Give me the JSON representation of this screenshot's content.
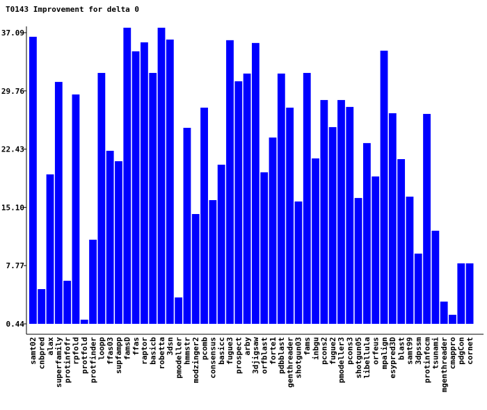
{
  "chart_data": {
    "type": "bar",
    "title": "T0143 Improvement for delta 0",
    "categories": [
      "samt02",
      "cnbpred",
      "alax",
      "superfamily",
      "protinfofr",
      "rpfold",
      "protfold",
      "protfinder",
      "loopp",
      "ffas03",
      "supfampp",
      "famsD",
      "ffas",
      "raptor",
      "basicb",
      "robetta",
      "3dsn",
      "pmodeller",
      "hmmstr",
      "modzinger2",
      "pcomb",
      "consensus",
      "basicc",
      "fugue3",
      "prospect",
      "arby",
      "3djigsaw",
      "orfblast",
      "forte1",
      "pdbblast",
      "genthreader",
      "shotgun03",
      "fams",
      "inbgu",
      "pcons2",
      "fugue2",
      "pmodeller3",
      "pcons3",
      "shotgun05",
      "libellula",
      "orfeus",
      "mpalign",
      "esypred3D",
      "blast",
      "samt99",
      "3dpssm",
      "protinfocm",
      "tsunami",
      "mgenthreader",
      "cmappro",
      "pdgCon",
      "cornet"
    ],
    "values": [
      36.57,
      4.81,
      19.25,
      30.89,
      5.86,
      29.31,
      0.96,
      11.03,
      32.02,
      22.22,
      20.91,
      37.71,
      34.74,
      35.87,
      32.02,
      37.71,
      36.22,
      3.76,
      25.11,
      14.26,
      27.65,
      16.01,
      20.47,
      36.14,
      30.97,
      31.94,
      35.79,
      19.51,
      23.89,
      31.94,
      27.65,
      15.84,
      32.02,
      21.26,
      28.61,
      25.2,
      28.61,
      27.74,
      16.28,
      23.19,
      18.99,
      34.82,
      26.95,
      21.17,
      16.45,
      9.28,
      26.86,
      12.16,
      3.24,
      1.58,
      8.05,
      8.05
    ],
    "color": "#0000ff",
    "ylim": [
      0.44,
      37.7
    ],
    "yticks": [
      {
        "value": 0.44,
        "label": "0.44"
      },
      {
        "value": 7.77,
        "label": "7.77"
      },
      {
        "value": 15.1,
        "label": "15.10"
      },
      {
        "value": 22.43,
        "label": "22.43"
      },
      {
        "value": 29.76,
        "label": "29.76"
      },
      {
        "value": 37.09,
        "label": "37.09"
      }
    ]
  }
}
